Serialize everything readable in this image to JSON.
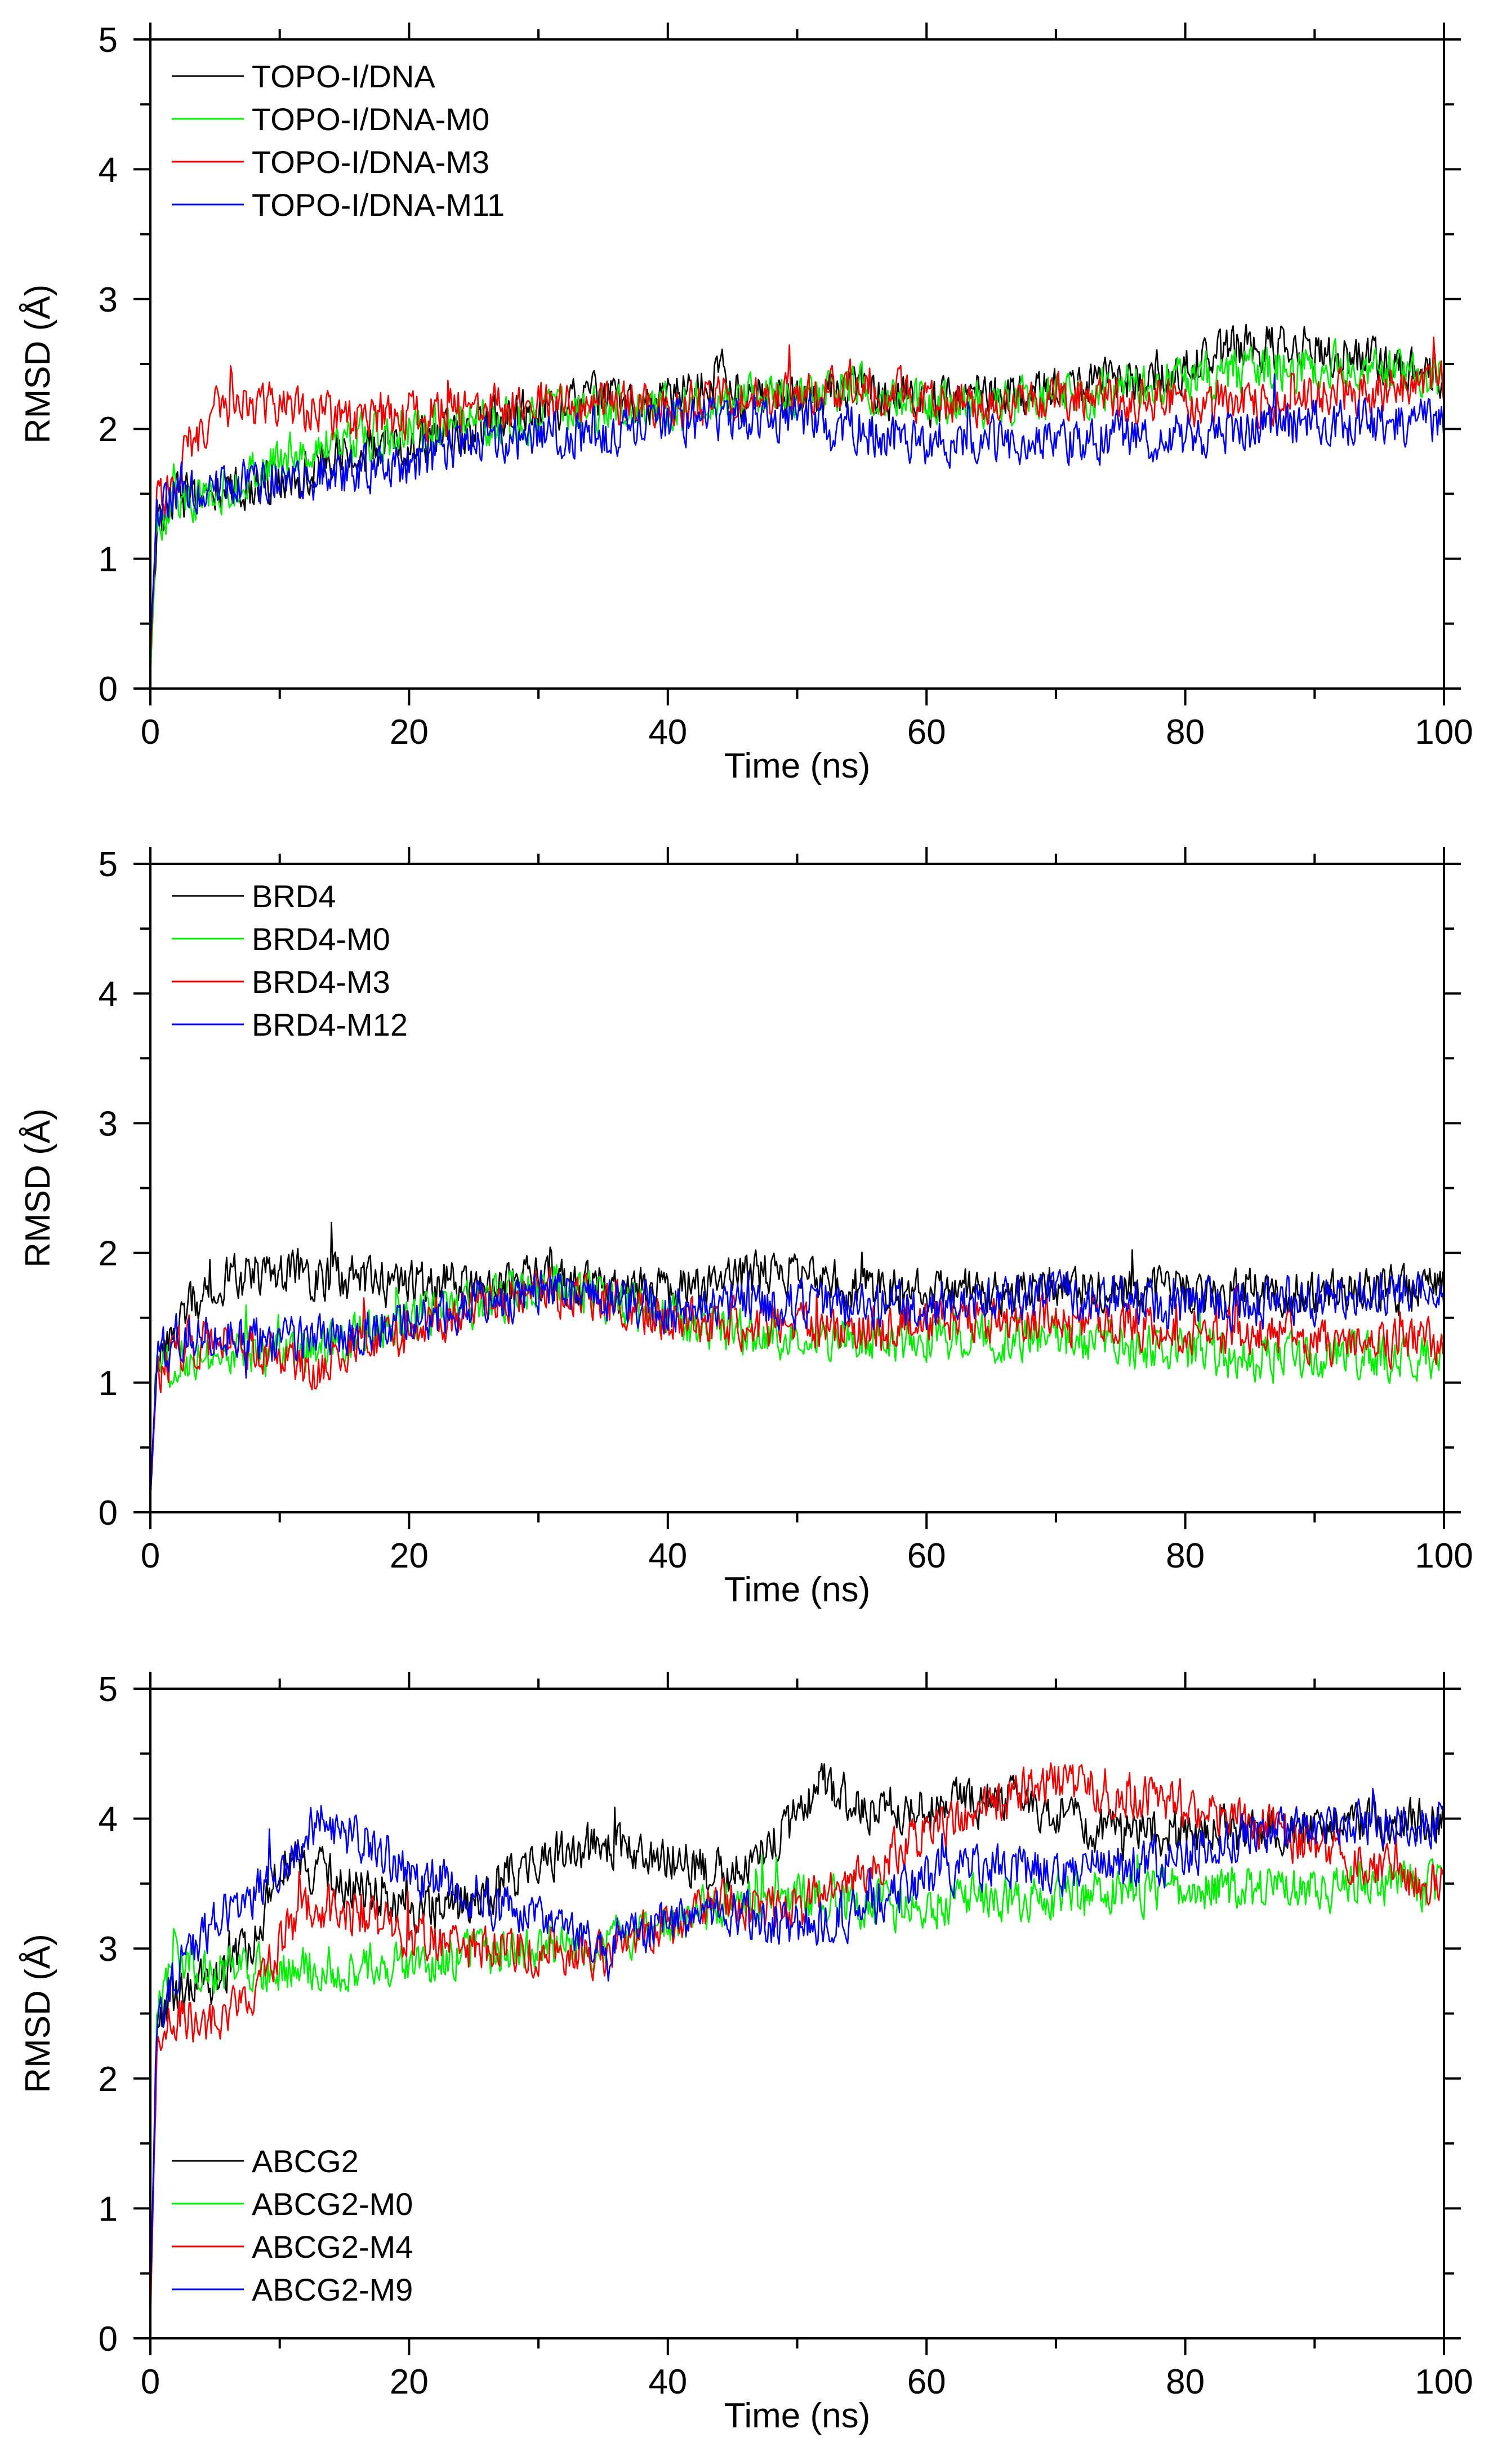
{
  "figure": {
    "description_free": true
  },
  "chart_data": [
    {
      "type": "line",
      "panel": "top",
      "xlabel": "Time (ns)",
      "ylabel": "RMSD (Å)",
      "xlim": [
        0,
        100
      ],
      "ylim": [
        0,
        5
      ],
      "xticks": [
        0,
        20,
        40,
        60,
        80,
        100
      ],
      "yticks": [
        0,
        1,
        2,
        3,
        4,
        5
      ],
      "legend_position": "top-left",
      "series": [
        {
          "name": "TOPO-I/DNA",
          "color": "#000000",
          "x": [
            0,
            0.5,
            2,
            5,
            10,
            15,
            20,
            25,
            30,
            35,
            40,
            44,
            45,
            50,
            55,
            60,
            65,
            70,
            75,
            80,
            85,
            90,
            95,
            100
          ],
          "y": [
            0.1,
            1.3,
            1.5,
            1.5,
            1.6,
            1.8,
            1.9,
            2.0,
            2.15,
            2.25,
            2.2,
            2.45,
            2.25,
            2.25,
            2.3,
            2.2,
            2.25,
            2.35,
            2.4,
            2.45,
            2.65,
            2.6,
            2.5,
            2.4
          ]
        },
        {
          "name": "TOPO-I/DNA-M0",
          "color": "#00ee00",
          "x": [
            0,
            0.5,
            2,
            5,
            10,
            15,
            20,
            25,
            30,
            35,
            40,
            45,
            50,
            55,
            60,
            65,
            70,
            75,
            80,
            85,
            90,
            95,
            100
          ],
          "y": [
            0.1,
            1.3,
            1.4,
            1.5,
            1.75,
            1.9,
            2.0,
            2.05,
            2.1,
            2.15,
            2.15,
            2.2,
            2.25,
            2.3,
            2.2,
            2.2,
            2.25,
            2.3,
            2.4,
            2.45,
            2.5,
            2.45,
            2.4
          ]
        },
        {
          "name": "TOPO-I/DNA-M3",
          "color": "#ee0000",
          "x": [
            0,
            0.5,
            2,
            5,
            10,
            15,
            20,
            25,
            30,
            35,
            40,
            45,
            50,
            55,
            60,
            65,
            70,
            75,
            80,
            85,
            90,
            95,
            100
          ],
          "y": [
            0.2,
            1.4,
            1.7,
            2.15,
            2.2,
            2.05,
            2.1,
            2.15,
            2.2,
            2.2,
            2.15,
            2.25,
            2.3,
            2.35,
            2.2,
            2.2,
            2.25,
            2.25,
            2.2,
            2.2,
            2.25,
            2.3,
            2.35
          ]
        },
        {
          "name": "TOPO-I/DNA-M11",
          "color": "#0000ee",
          "x": [
            0,
            0.5,
            2,
            5,
            10,
            15,
            20,
            25,
            30,
            35,
            40,
            45,
            50,
            55,
            60,
            65,
            70,
            75,
            80,
            85,
            90,
            95,
            100
          ],
          "y": [
            0.3,
            1.4,
            1.5,
            1.55,
            1.6,
            1.65,
            1.75,
            1.9,
            1.95,
            1.95,
            2.05,
            2.1,
            2.1,
            2.0,
            1.9,
            1.9,
            1.9,
            1.95,
            1.95,
            2.0,
            2.05,
            2.05,
            2.05
          ]
        }
      ]
    },
    {
      "type": "line",
      "panel": "middle",
      "xlabel": "Time (ns)",
      "ylabel": "RMSD (Å)",
      "xlim": [
        0,
        100
      ],
      "ylim": [
        0,
        5
      ],
      "xticks": [
        0,
        20,
        40,
        60,
        80,
        100
      ],
      "yticks": [
        0,
        1,
        2,
        3,
        4,
        5
      ],
      "legend_position": "top-left",
      "series": [
        {
          "name": "BRD4",
          "color": "#000000",
          "x": [
            0,
            0.5,
            3,
            6,
            10,
            15,
            20,
            25,
            30,
            35,
            40,
            45,
            50,
            55,
            60,
            65,
            70,
            75,
            80,
            85,
            90,
            95,
            100
          ],
          "y": [
            0.1,
            1.2,
            1.6,
            1.8,
            1.85,
            1.8,
            1.75,
            1.75,
            1.8,
            1.75,
            1.7,
            1.8,
            1.85,
            1.7,
            1.7,
            1.7,
            1.75,
            1.7,
            1.7,
            1.7,
            1.7,
            1.7,
            1.75
          ]
        },
        {
          "name": "BRD4-M0",
          "color": "#00ee00",
          "x": [
            0,
            0.5,
            3,
            6,
            10,
            15,
            20,
            25,
            30,
            35,
            40,
            45,
            50,
            55,
            60,
            65,
            70,
            75,
            80,
            85,
            90,
            95,
            100
          ],
          "y": [
            0.1,
            1.1,
            1.2,
            1.25,
            1.2,
            1.3,
            1.5,
            1.6,
            1.75,
            1.65,
            1.5,
            1.4,
            1.35,
            1.35,
            1.35,
            1.35,
            1.35,
            1.3,
            1.25,
            1.2,
            1.2,
            1.2,
            1.2
          ]
        },
        {
          "name": "BRD4-M3",
          "color": "#ee0000",
          "x": [
            0,
            0.5,
            3,
            6,
            10,
            13,
            15,
            20,
            25,
            30,
            35,
            40,
            45,
            50,
            55,
            60,
            65,
            70,
            75,
            80,
            85,
            90,
            95,
            100
          ],
          "y": [
            0.1,
            1.1,
            1.3,
            1.3,
            1.2,
            1.05,
            1.2,
            1.4,
            1.6,
            1.7,
            1.65,
            1.5,
            1.45,
            1.45,
            1.4,
            1.45,
            1.5,
            1.45,
            1.45,
            1.4,
            1.4,
            1.35,
            1.3,
            1.3
          ]
        },
        {
          "name": "BRD4-M12",
          "color": "#0000ee",
          "x": [
            0,
            0.5,
            3,
            6,
            10,
            15,
            20,
            25,
            30,
            35,
            40,
            45,
            50,
            55,
            60,
            65,
            70,
            75,
            80,
            85,
            90,
            95,
            100
          ],
          "y": [
            0.1,
            1.2,
            1.4,
            1.35,
            1.3,
            1.35,
            1.5,
            1.6,
            1.7,
            1.65,
            1.55,
            1.6,
            1.6,
            1.6,
            1.6,
            1.65,
            1.65,
            1.65,
            1.6,
            1.6,
            1.65,
            1.7,
            1.75
          ]
        }
      ]
    },
    {
      "type": "line",
      "panel": "bottom",
      "xlabel": "Time (ns)",
      "ylabel": "RMSD (Å)",
      "xlim": [
        0,
        100
      ],
      "ylim": [
        0,
        5
      ],
      "xticks": [
        0,
        20,
        40,
        60,
        80,
        100
      ],
      "yticks": [
        0,
        1,
        2,
        3,
        4,
        5
      ],
      "legend_position": "bottom-left",
      "series": [
        {
          "name": "ABCG2",
          "color": "#000000",
          "x": [
            0,
            0.5,
            2,
            5,
            8,
            10,
            12,
            15,
            20,
            25,
            30,
            35,
            40,
            45,
            50,
            52,
            55,
            60,
            65,
            70,
            75,
            80,
            85,
            90,
            95,
            100
          ],
          "y": [
            0.2,
            2.4,
            2.65,
            2.75,
            3.0,
            3.7,
            3.65,
            3.5,
            3.3,
            3.35,
            3.7,
            3.8,
            3.7,
            3.55,
            4.0,
            4.3,
            4.1,
            4.05,
            4.2,
            4.05,
            3.85,
            3.9,
            3.9,
            3.95,
            3.95,
            4.0
          ]
        },
        {
          "name": "ABCG2-M0",
          "color": "#00ee00",
          "x": [
            0,
            0.5,
            2,
            5,
            10,
            15,
            20,
            25,
            30,
            35,
            40,
            45,
            50,
            55,
            60,
            65,
            70,
            75,
            80,
            85,
            90,
            95,
            100
          ],
          "y": [
            0.3,
            2.5,
            2.9,
            2.8,
            2.85,
            2.85,
            2.9,
            2.95,
            3.0,
            3.05,
            3.2,
            3.35,
            3.4,
            3.35,
            3.3,
            3.4,
            3.4,
            3.45,
            3.45,
            3.45,
            3.45,
            3.5,
            3.45
          ]
        },
        {
          "name": "ABCG2-M4",
          "color": "#ee0000",
          "x": [
            0,
            0.5,
            2,
            4,
            8,
            12,
            15,
            20,
            25,
            30,
            35,
            40,
            45,
            50,
            55,
            60,
            65,
            70,
            75,
            80,
            85,
            90,
            95,
            100
          ],
          "y": [
            0.1,
            2.3,
            2.5,
            2.4,
            2.7,
            3.3,
            3.3,
            3.1,
            3.0,
            3.0,
            2.95,
            3.2,
            3.35,
            3.3,
            3.6,
            3.9,
            4.1,
            4.3,
            4.2,
            4.1,
            3.95,
            3.8,
            3.6,
            3.5
          ]
        },
        {
          "name": "ABCG2-M9",
          "color": "#0000ee",
          "x": [
            0,
            0.5,
            2,
            5,
            10,
            13,
            15,
            20,
            25,
            30,
            35,
            40,
            45,
            50,
            55,
            60,
            65,
            70,
            75,
            80,
            85,
            90,
            95,
            100
          ],
          "y": [
            0.3,
            2.4,
            2.8,
            3.2,
            3.6,
            4.0,
            3.9,
            3.6,
            3.4,
            3.2,
            3.05,
            3.2,
            3.3,
            3.15,
            3.3,
            3.55,
            3.65,
            3.6,
            3.6,
            3.7,
            3.85,
            3.95,
            3.95,
            4.0
          ]
        }
      ]
    }
  ]
}
